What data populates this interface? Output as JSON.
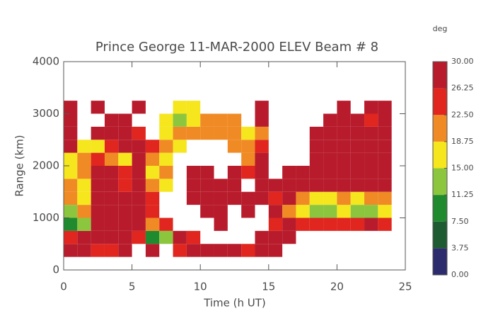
{
  "chart_data": {
    "type": "heatmap",
    "title": "Prince George 11-MAR-2000 ELEV Beam # 8",
    "x_label": "Time (h UT)",
    "y_label": "Range (km)",
    "xlim": [
      0,
      25
    ],
    "xticks": [
      0,
      5,
      10,
      15,
      20,
      25
    ],
    "ylim": [
      0,
      4000
    ],
    "yticks": [
      0,
      1000,
      2000,
      3000,
      4000
    ],
    "x_edges": [
      0,
      1,
      2,
      3,
      4,
      5,
      6,
      7,
      8,
      9,
      10,
      11,
      12,
      13,
      14,
      15,
      16,
      17,
      18,
      19,
      20,
      21,
      22,
      23,
      24
    ],
    "y_edges": [
      250,
      500,
      750,
      1000,
      1250,
      1500,
      1750,
      2000,
      2250,
      2500,
      2750,
      3000,
      3250
    ],
    "values": [
      [
        28,
        28,
        24,
        26,
        28,
        null,
        28,
        null,
        24,
        28,
        28,
        28,
        28,
        26,
        28,
        28,
        null,
        null,
        null,
        null,
        null,
        null,
        null,
        null
      ],
      [
        24,
        28,
        28,
        28,
        28,
        26,
        9,
        13,
        28,
        24,
        null,
        null,
        null,
        null,
        28,
        28,
        28,
        null,
        null,
        null,
        null,
        null,
        null,
        null
      ],
      [
        9,
        13,
        28,
        28,
        28,
        28,
        20,
        24,
        null,
        null,
        null,
        28,
        null,
        null,
        null,
        24,
        28,
        24,
        24,
        24,
        24,
        24,
        28,
        24
      ],
      [
        13,
        20,
        28,
        28,
        28,
        28,
        24,
        null,
        null,
        null,
        28,
        28,
        null,
        28,
        null,
        28,
        20,
        17,
        13,
        13,
        17,
        13,
        13,
        17
      ],
      [
        20,
        17,
        28,
        28,
        28,
        28,
        24,
        null,
        null,
        28,
        28,
        28,
        28,
        28,
        28,
        24,
        28,
        20,
        17,
        17,
        20,
        17,
        20,
        20
      ],
      [
        20,
        17,
        28,
        28,
        24,
        28,
        20,
        17,
        null,
        28,
        28,
        28,
        28,
        null,
        28,
        28,
        28,
        28,
        28,
        28,
        28,
        28,
        28,
        28
      ],
      [
        17,
        20,
        28,
        28,
        24,
        28,
        17,
        20,
        null,
        28,
        28,
        null,
        28,
        24,
        28,
        null,
        28,
        28,
        28,
        28,
        28,
        28,
        28,
        28
      ],
      [
        17,
        20,
        24,
        20,
        17,
        28,
        20,
        17,
        null,
        null,
        null,
        null,
        null,
        20,
        28,
        null,
        null,
        null,
        28,
        28,
        28,
        28,
        28,
        28
      ],
      [
        28,
        17,
        17,
        24,
        28,
        28,
        24,
        20,
        17,
        null,
        null,
        null,
        20,
        20,
        24,
        null,
        null,
        null,
        28,
        28,
        28,
        28,
        28,
        28
      ],
      [
        28,
        null,
        28,
        28,
        28,
        24,
        null,
        17,
        20,
        20,
        20,
        20,
        20,
        17,
        20,
        null,
        null,
        null,
        28,
        28,
        28,
        28,
        28,
        28
      ],
      [
        28,
        null,
        null,
        28,
        28,
        null,
        null,
        17,
        13,
        17,
        20,
        20,
        20,
        null,
        28,
        null,
        null,
        null,
        null,
        28,
        28,
        28,
        24,
        28
      ],
      [
        28,
        null,
        28,
        null,
        null,
        28,
        null,
        null,
        15,
        17,
        null,
        null,
        null,
        null,
        28,
        null,
        null,
        null,
        null,
        null,
        28,
        null,
        28,
        28
      ]
    ],
    "colorbar_label": "deg",
    "colorbar_lim": [
      0,
      30
    ],
    "colorbar_ticks": [
      {
        "value": 0,
        "label": "0.00"
      },
      {
        "value": 3.75,
        "label": "3.75"
      },
      {
        "value": 7.5,
        "label": "7.50"
      },
      {
        "value": 11.25,
        "label": "11.25"
      },
      {
        "value": 15,
        "label": "15.00"
      },
      {
        "value": 18.75,
        "label": "18.75"
      },
      {
        "value": 22.5,
        "label": "22.50"
      },
      {
        "value": 26.25,
        "label": "26.25"
      },
      {
        "value": 30,
        "label": "30.00"
      }
    ],
    "colors": [
      "#2b2b6e",
      "#1f5b32",
      "#1f8a2e",
      "#8cc63f",
      "#f5e61e",
      "#f08a24",
      "#e0261f",
      "#b81c2c"
    ]
  }
}
